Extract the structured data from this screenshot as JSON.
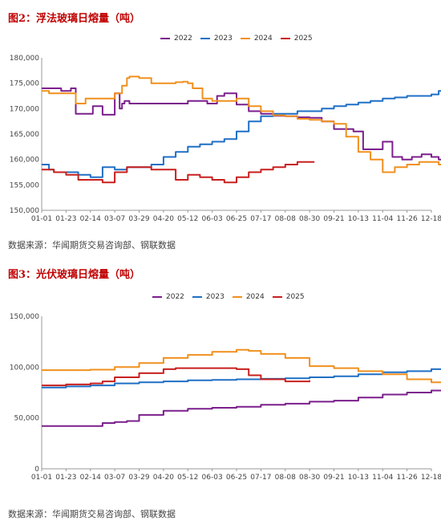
{
  "colors": {
    "2022": "#7b1f8c",
    "2023": "#1f6fc5",
    "2024": "#f0901e",
    "2025": "#c8201e"
  },
  "chart_data": [
    {
      "type": "line",
      "title": "图2：浮法玻璃日熔量（吨）",
      "source": "数据来源：华闻期货交易咨询部、钢联数据",
      "x_ticks": [
        "01-01",
        "01-23",
        "02-14",
        "03-07",
        "03-29",
        "04-20",
        "05-12",
        "06-03",
        "06-25",
        "07-17",
        "08-08",
        "08-30",
        "09-21",
        "10-13",
        "11-04",
        "11-26",
        "12-18"
      ],
      "y_ticks": [
        "150,000",
        "155,000",
        "160,000",
        "165,000",
        "170,000",
        "175,000",
        "180,000"
      ],
      "ylim": [
        150000,
        180000
      ],
      "legend": [
        "2022",
        "2023",
        "2024",
        "2025"
      ],
      "series": [
        {
          "name": "2022",
          "x": [
            0,
            0.8,
            1.2,
            1.4,
            2.0,
            2.1,
            2.5,
            3.0,
            3.2,
            3.3,
            3.4,
            3.6,
            4.0,
            4.5,
            5.0,
            5.8,
            6.0,
            6.6,
            6.8,
            7.2,
            7.5,
            8.0,
            8.5,
            9.0,
            9.5,
            10.0,
            10.5,
            11.0,
            11.5,
            12.0,
            12.3,
            12.8,
            13.2,
            13.6,
            14.0,
            14.4,
            14.8,
            15.2,
            15.6,
            16.0,
            16.3,
            16.5,
            16.6
          ],
          "y": [
            174000,
            173500,
            174000,
            169000,
            169000,
            170500,
            168800,
            173000,
            170000,
            171000,
            171500,
            171000,
            171000,
            171000,
            171000,
            171000,
            171500,
            171500,
            171000,
            172500,
            173000,
            170800,
            169500,
            169000,
            168600,
            168500,
            168300,
            168200,
            167500,
            166000,
            166000,
            165500,
            162000,
            162000,
            163500,
            160500,
            160000,
            160500,
            161000,
            160500,
            160000,
            159500,
            158500
          ]
        },
        {
          "name": "2023",
          "x": [
            0,
            0.3,
            0.5,
            1.0,
            1.5,
            2.0,
            2.5,
            3.0,
            3.5,
            4.0,
            4.5,
            5.0,
            5.5,
            6.0,
            6.5,
            7.0,
            7.5,
            8.0,
            8.5,
            9.0,
            9.5,
            10.0,
            10.5,
            11.0,
            11.5,
            12.0,
            12.5,
            13.0,
            13.5,
            14.0,
            14.5,
            15.0,
            15.5,
            16.0,
            16.3,
            16.6
          ],
          "y": [
            159000,
            158000,
            157500,
            157500,
            157000,
            156500,
            158500,
            158000,
            158500,
            158500,
            159000,
            160500,
            161500,
            162500,
            163000,
            163500,
            164000,
            165500,
            167500,
            168500,
            169000,
            169000,
            169500,
            169500,
            170000,
            170500,
            170800,
            171200,
            171500,
            172000,
            172200,
            172500,
            172500,
            172800,
            173500,
            173800
          ]
        },
        {
          "name": "2024",
          "x": [
            0,
            0.3,
            0.6,
            1.0,
            1.4,
            1.8,
            2.2,
            2.6,
            3.0,
            3.3,
            3.5,
            3.6,
            4.0,
            4.5,
            5.0,
            5.5,
            5.8,
            6.0,
            6.2,
            6.6,
            7.0,
            7.5,
            8.0,
            8.5,
            9.0,
            9.5,
            10.0,
            10.5,
            11.0,
            11.5,
            12.0,
            12.5,
            13.0,
            13.5,
            14.0,
            14.5,
            15.0,
            15.5,
            16.0,
            16.3,
            16.6
          ],
          "y": [
            173500,
            173000,
            173000,
            173000,
            171000,
            172000,
            172000,
            172000,
            173000,
            174500,
            176000,
            176300,
            176000,
            175000,
            175000,
            175200,
            175300,
            175000,
            174000,
            172000,
            171500,
            171500,
            172000,
            170500,
            169500,
            168700,
            168500,
            168000,
            167800,
            167500,
            167000,
            164500,
            161500,
            160000,
            157500,
            158500,
            159000,
            159500,
            159500,
            159000,
            158500
          ]
        },
        {
          "name": "2025",
          "x": [
            0,
            0.5,
            1.0,
            1.5,
            2.0,
            2.5,
            3.0,
            3.5,
            4.0,
            4.5,
            5.0,
            5.5,
            6.0,
            6.5,
            7.0,
            7.5,
            8.0,
            8.5,
            9.0,
            9.5,
            10.0,
            10.5,
            11.0,
            11.2
          ],
          "y": [
            158000,
            157500,
            157000,
            156000,
            156000,
            155500,
            157500,
            158500,
            158500,
            158000,
            158000,
            156000,
            157000,
            156500,
            156000,
            155500,
            156500,
            157500,
            158000,
            158500,
            159000,
            159500,
            159500,
            159500
          ]
        }
      ]
    },
    {
      "type": "line",
      "title": "图3：光伏玻璃日熔量（吨）",
      "source": "数据来源：华闻期货交易咨询部、钢联数据",
      "x_ticks": [
        "01-01",
        "01-23",
        "02-14",
        "03-07",
        "03-29",
        "04-20",
        "05-12",
        "06-03",
        "06-25",
        "07-17",
        "08-08",
        "08-30",
        "09-21",
        "10-13",
        "11-04",
        "11-26",
        "12-18"
      ],
      "y_ticks": [
        "0",
        "50,000",
        "100,000",
        "150,000"
      ],
      "ylim": [
        0,
        150000
      ],
      "legend": [
        "2022",
        "2023",
        "2024",
        "2025"
      ],
      "series": [
        {
          "name": "2022",
          "x": [
            0,
            1.0,
            2.0,
            2.5,
            3.0,
            3.5,
            4.0,
            5.0,
            6.0,
            7.0,
            8.0,
            9.0,
            10.0,
            11.0,
            12.0,
            13.0,
            14.0,
            15.0,
            16.0,
            16.6
          ],
          "y": [
            42000,
            42000,
            42000,
            45000,
            46000,
            47000,
            53000,
            57000,
            59000,
            60000,
            61000,
            63000,
            64000,
            66000,
            67000,
            70000,
            73000,
            75000,
            77000,
            79000
          ]
        },
        {
          "name": "2023",
          "x": [
            0,
            1.0,
            2.0,
            3.0,
            4.0,
            5.0,
            6.0,
            7.0,
            8.0,
            9.0,
            10.0,
            11.0,
            12.0,
            13.0,
            14.0,
            15.0,
            16.0,
            16.6
          ],
          "y": [
            80000,
            81000,
            82000,
            84000,
            85000,
            86000,
            87000,
            87500,
            88000,
            88500,
            89000,
            90000,
            91000,
            93000,
            95000,
            96000,
            98000,
            100000
          ]
        },
        {
          "name": "2024",
          "x": [
            0,
            1.0,
            2.0,
            3.0,
            4.0,
            5.0,
            6.0,
            7.0,
            8.0,
            8.5,
            9.0,
            10.0,
            11.0,
            12.0,
            13.0,
            14.0,
            15.0,
            16.0,
            16.6
          ],
          "y": [
            97000,
            97000,
            97500,
            100000,
            104000,
            109000,
            112000,
            115000,
            117000,
            116000,
            113000,
            109000,
            101000,
            99000,
            96000,
            93000,
            88000,
            85000,
            83000
          ]
        },
        {
          "name": "2025",
          "x": [
            0,
            1.0,
            2.0,
            2.5,
            3.0,
            4.0,
            5.0,
            5.5,
            6.0,
            7.0,
            8.0,
            8.5,
            9.0,
            10.0,
            11.0
          ],
          "y": [
            82000,
            83000,
            84000,
            86000,
            90000,
            94000,
            98000,
            99000,
            99000,
            99000,
            98000,
            92000,
            88000,
            86000,
            87000
          ]
        }
      ]
    }
  ]
}
